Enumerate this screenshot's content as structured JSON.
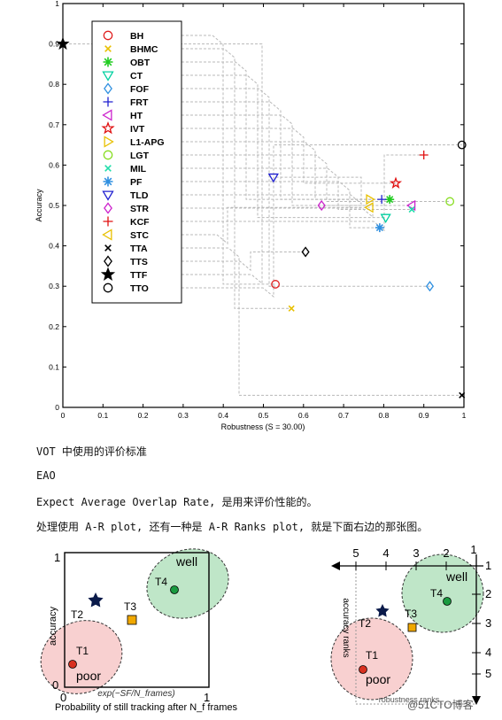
{
  "chart_data": [
    {
      "type": "scatter",
      "title": "",
      "xlabel": "Robustness (S = 30.00)",
      "ylabel": "Accuracy",
      "xlim": [
        0,
        1
      ],
      "ylim": [
        0,
        1
      ],
      "xticks": [
        "0",
        "0.1",
        "0.2",
        "0.3",
        "0.4",
        "0.5",
        "0.6",
        "0.7",
        "0.8",
        "0.9",
        "1"
      ],
      "yticks": [
        "0",
        "0.1",
        "0.2",
        "0.3",
        "0.4",
        "0.5",
        "0.6",
        "0.7",
        "0.8",
        "0.9",
        "1"
      ],
      "grid": false,
      "legend_position": "top-left",
      "series": [
        {
          "name": "BH",
          "marker": "circle",
          "color": "#e02020",
          "x": 0.53,
          "y": 0.305
        },
        {
          "name": "BHMC",
          "marker": "x",
          "color": "#e8c000",
          "x": 0.57,
          "y": 0.245
        },
        {
          "name": "OBT",
          "marker": "asterisk",
          "color": "#22cc22",
          "x": 0.815,
          "y": 0.515
        },
        {
          "name": "CT",
          "marker": "triangle-down",
          "color": "#00d0a0",
          "x": 0.805,
          "y": 0.47
        },
        {
          "name": "FOF",
          "marker": "diamond",
          "color": "#3090e0",
          "x": 0.915,
          "y": 0.3
        },
        {
          "name": "FRT",
          "marker": "plus",
          "color": "#2020d0",
          "x": 0.795,
          "y": 0.515
        },
        {
          "name": "HT",
          "marker": "triangle-left",
          "color": "#cc22cc",
          "x": 0.87,
          "y": 0.5
        },
        {
          "name": "IVT",
          "marker": "pentagram",
          "color": "#e01010",
          "x": 0.83,
          "y": 0.555
        },
        {
          "name": "L1-APG",
          "marker": "triangle-right",
          "color": "#e8c000",
          "x": 0.765,
          "y": 0.515
        },
        {
          "name": "LGT",
          "marker": "circle",
          "color": "#88dd22",
          "x": 0.965,
          "y": 0.51
        },
        {
          "name": "MIL",
          "marker": "x",
          "color": "#22ddaa",
          "x": 0.87,
          "y": 0.49
        },
        {
          "name": "PF",
          "marker": "asterisk",
          "color": "#3090e0",
          "x": 0.79,
          "y": 0.445
        },
        {
          "name": "TLD",
          "marker": "triangle-down",
          "color": "#2020d0",
          "x": 0.525,
          "y": 0.57
        },
        {
          "name": "STR",
          "marker": "diamond",
          "color": "#cc22cc",
          "x": 0.645,
          "y": 0.5
        },
        {
          "name": "KCF",
          "marker": "plus",
          "color": "#e01010",
          "x": 0.9,
          "y": 0.625
        },
        {
          "name": "STC",
          "marker": "triangle-left",
          "color": "#e8c000",
          "x": 0.765,
          "y": 0.495
        },
        {
          "name": "TTA",
          "marker": "x",
          "color": "#000000",
          "x": 0.995,
          "y": 0.03
        },
        {
          "name": "TTS",
          "marker": "diamond",
          "color": "#000000",
          "x": 0.605,
          "y": 0.385
        },
        {
          "name": "TTF",
          "marker": "pentagram",
          "color": "#000000",
          "x": 0.0,
          "y": 0.9
        },
        {
          "name": "TTO",
          "marker": "circle",
          "color": "#000000",
          "x": 0.995,
          "y": 0.65
        }
      ]
    },
    {
      "type": "scatter",
      "title": "",
      "xlabel": "Probability of still tracking after N_f frames",
      "formula": "exp(−SF/N_frames)",
      "ylabel": "accuracy",
      "xticks": [
        "0",
        "1"
      ],
      "yticks": [
        "0",
        "1"
      ],
      "regions": [
        {
          "label": "well",
          "color": "#bfe6c8"
        },
        {
          "label": "poor",
          "color": "#f8d0d0"
        }
      ],
      "points": [
        {
          "label": "T1",
          "marker": "circle",
          "color": "#d83020"
        },
        {
          "label": "T2",
          "marker": "star",
          "color": "#0a1a4a"
        },
        {
          "label": "T3",
          "marker": "square",
          "color": "#f0a800"
        },
        {
          "label": "T4",
          "marker": "circle",
          "color": "#1a9a40"
        }
      ]
    },
    {
      "type": "scatter",
      "title": "",
      "xlabel": "robustness ranks",
      "ylabel": "accuracy ranks",
      "xticks": [
        "5",
        "4",
        "3",
        "2",
        "1"
      ],
      "yticks": [
        "1",
        "2",
        "3",
        "4",
        "5"
      ],
      "regions": [
        {
          "label": "well",
          "color": "#bfe6c8"
        },
        {
          "label": "poor",
          "color": "#f8d0d0"
        }
      ],
      "points": [
        {
          "label": "T1",
          "marker": "circle",
          "color": "#d83020"
        },
        {
          "label": "T2",
          "marker": "star",
          "color": "#0a1a4a"
        },
        {
          "label": "T3",
          "marker": "square",
          "color": "#f0a800"
        },
        {
          "label": "T4",
          "marker": "circle",
          "color": "#1a9a40"
        }
      ]
    }
  ],
  "text": {
    "line1": "VOT 中使用的评价标准",
    "line2": "EAO",
    "line3": "Expect Average Overlap Rate, 是用来评价性能的。",
    "line4": "处理使用 A-R plot, 还有一种是 A-R Ranks plot, 就是下面右边的那张图。"
  },
  "watermark": "@51CTO博客"
}
